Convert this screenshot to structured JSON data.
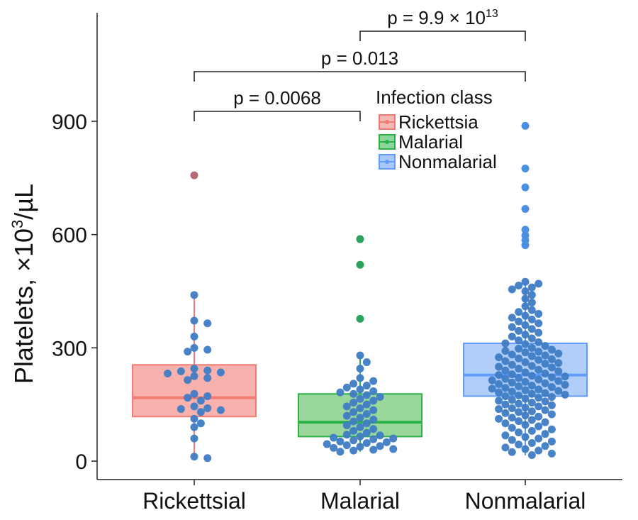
{
  "chart_data": {
    "type": "box",
    "title": "",
    "xlabel": "",
    "ylabel": {
      "main": "Platelets, ×10",
      "sup": "3",
      "unit": "/µL"
    },
    "ylim": [
      -50,
      1200
    ],
    "yticks": [
      0,
      300,
      600,
      900
    ],
    "categories": [
      "Rickettsial",
      "Malarial",
      "Nonmalarial"
    ],
    "legend": {
      "title": "Infection class",
      "position": "top-right",
      "entries": [
        {
          "label": "Rickettsia",
          "color": "#F07B72"
        },
        {
          "label": "Malarial",
          "color": "#2DB24A"
        },
        {
          "label": "Nonmalarial",
          "color": "#619CFF"
        }
      ]
    },
    "boxes": [
      {
        "category": "Rickettsial",
        "fill": "#F8A9A4",
        "stroke": "#F07B72",
        "q1": 118,
        "median": 168,
        "q3": 255,
        "min": 5,
        "max": 440
      },
      {
        "category": "Malarial",
        "fill": "#8FD38F",
        "stroke": "#2DB24A",
        "q1": 65,
        "median": 103,
        "q3": 178,
        "min": 25,
        "max": 280
      },
      {
        "category": "Nonmalarial",
        "fill": "#A8C8F8",
        "stroke": "#619CFF",
        "q1": 172,
        "median": 228,
        "q3": 312,
        "min": 15,
        "max": 475
      }
    ],
    "outliers": [
      {
        "category": "Rickettsial",
        "values": [
          757
        ],
        "color": "#B86A74"
      },
      {
        "category": "Malarial",
        "values": [
          588,
          520,
          377
        ],
        "color": "#2AA35C"
      },
      {
        "category": "Nonmalarial",
        "values": [
          888,
          775,
          725,
          668,
          613,
          598,
          585,
          572
        ],
        "color": "#4A8FE0"
      }
    ],
    "points": [
      {
        "category": "Rickettsial",
        "values": [
          440,
          372,
          365,
          330,
          300,
          295,
          290,
          245,
          240,
          238,
          235,
          232,
          225,
          220,
          215,
          178,
          172,
          168,
          160,
          145,
          140,
          138,
          135,
          130,
          112,
          100,
          90,
          60,
          12,
          8
        ]
      },
      {
        "category": "Malarial",
        "values": [
          280,
          262,
          245,
          220,
          212,
          205,
          200,
          195,
          190,
          185,
          182,
          178,
          175,
          170,
          165,
          160,
          155,
          150,
          145,
          140,
          135,
          130,
          125,
          120,
          115,
          110,
          105,
          100,
          95,
          90,
          85,
          80,
          75,
          70,
          68,
          65,
          62,
          60,
          58,
          55,
          52,
          50,
          48,
          45,
          42,
          40,
          38,
          35,
          32,
          30,
          28,
          25
        ]
      },
      {
        "category": "Nonmalarial",
        "values": [
          475,
          470,
          465,
          460,
          455,
          450,
          440,
          430,
          420,
          410,
          400,
          395,
          390,
          385,
          380,
          375,
          370,
          365,
          360,
          355,
          350,
          345,
          340,
          335,
          330,
          325,
          320,
          315,
          312,
          310,
          305,
          300,
          298,
          295,
          292,
          290,
          288,
          285,
          282,
          280,
          278,
          275,
          272,
          270,
          268,
          265,
          262,
          260,
          258,
          255,
          252,
          250,
          248,
          245,
          242,
          240,
          238,
          235,
          232,
          230,
          228,
          226,
          224,
          222,
          220,
          218,
          216,
          214,
          212,
          210,
          208,
          206,
          204,
          202,
          200,
          198,
          196,
          194,
          192,
          190,
          188,
          186,
          184,
          182,
          180,
          178,
          176,
          174,
          172,
          170,
          168,
          165,
          162,
          160,
          158,
          155,
          152,
          150,
          148,
          145,
          142,
          140,
          138,
          135,
          132,
          130,
          127,
          124,
          121,
          118,
          115,
          112,
          109,
          106,
          103,
          100,
          96,
          92,
          88,
          84,
          80,
          76,
          72,
          68,
          64,
          60,
          56,
          52,
          48,
          44,
          40,
          36,
          32,
          28,
          24,
          20,
          16
        ]
      }
    ],
    "comparisons": [
      {
        "from": "Rickettsial",
        "to": "Malarial",
        "level": 920,
        "label": "p = 0.0068"
      },
      {
        "from": "Rickettsial",
        "to": "Nonmalarial",
        "level": 1025,
        "label": "p = 0.013"
      },
      {
        "from": "Malarial",
        "to": "Nonmalarial",
        "level": 1135,
        "label_main": "p = 9.9 × 10",
        "label_sup": "13"
      }
    ]
  }
}
